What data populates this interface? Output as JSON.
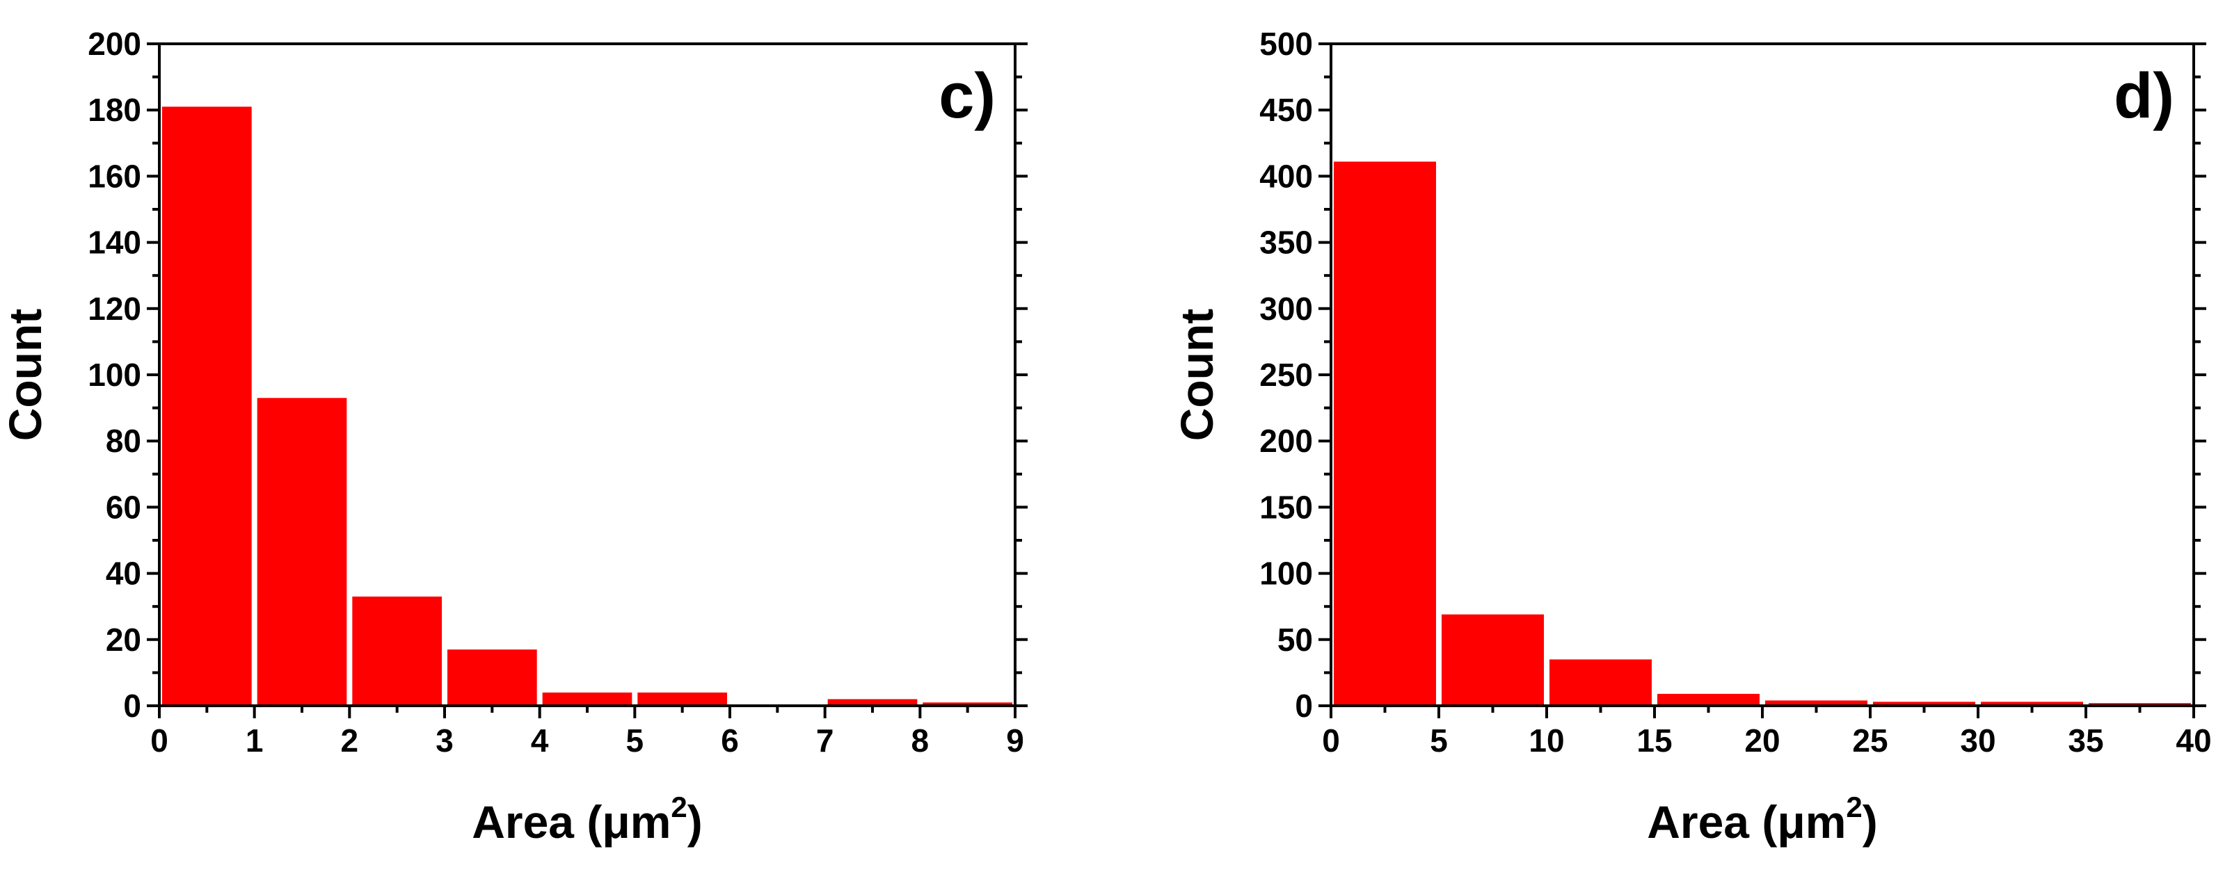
{
  "chart_data": [
    {
      "type": "bar",
      "panel_label": "c)",
      "xlabel": "Area (μm",
      "xlabel_sup": "2",
      "xlabel_close": ")",
      "ylabel": "Count",
      "xlim": [
        0,
        9
      ],
      "ylim": [
        0,
        200
      ],
      "x_ticks": [
        "0",
        "1",
        "2",
        "3",
        "4",
        "5",
        "6",
        "7",
        "8",
        "9"
      ],
      "y_ticks": [
        "0",
        "20",
        "40",
        "60",
        "80",
        "100",
        "120",
        "140",
        "160",
        "180",
        "200"
      ],
      "bins": [
        [
          0,
          1
        ],
        [
          1,
          2
        ],
        [
          2,
          3
        ],
        [
          3,
          4
        ],
        [
          4,
          5
        ],
        [
          5,
          6
        ],
        [
          6,
          7
        ],
        [
          7,
          8
        ],
        [
          8,
          9
        ]
      ],
      "values": [
        181,
        93,
        33,
        17,
        4,
        4,
        0,
        2,
        1
      ],
      "bar_color": "#ff0000"
    },
    {
      "type": "bar",
      "panel_label": "d)",
      "xlabel": "Area (μm",
      "xlabel_sup": "2",
      "xlabel_close": ")",
      "ylabel": "Count",
      "xlim": [
        0,
        40
      ],
      "ylim": [
        0,
        500
      ],
      "x_ticks": [
        "0",
        "5",
        "10",
        "15",
        "20",
        "25",
        "30",
        "35",
        "40"
      ],
      "y_ticks": [
        "0",
        "50",
        "100",
        "150",
        "200",
        "250",
        "300",
        "350",
        "400",
        "450",
        "500"
      ],
      "bins": [
        [
          0,
          5
        ],
        [
          5,
          10
        ],
        [
          10,
          15
        ],
        [
          15,
          20
        ],
        [
          20,
          25
        ],
        [
          25,
          30
        ],
        [
          30,
          35
        ],
        [
          35,
          40
        ]
      ],
      "values": [
        411,
        69,
        35,
        9,
        4,
        3,
        3,
        2
      ],
      "bar_color": "#ff0000"
    }
  ]
}
